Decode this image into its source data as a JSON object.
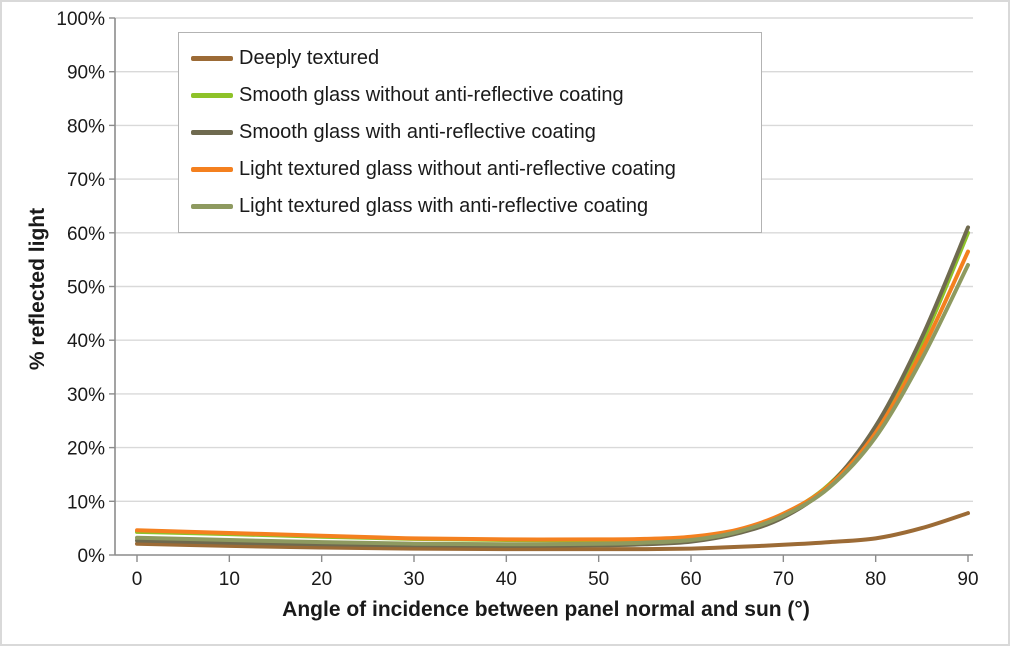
{
  "chart_data": {
    "type": "line",
    "title": "",
    "xlabel": "Angle of incidence between panel normal and sun (°)",
    "ylabel": "% reflected light",
    "xlim": [
      0,
      90
    ],
    "ylim": [
      0,
      100
    ],
    "x_ticks": [
      0,
      10,
      20,
      30,
      40,
      50,
      60,
      70,
      80,
      90
    ],
    "y_ticks": [
      "0%",
      "10%",
      "20%",
      "30%",
      "40%",
      "50%",
      "60%",
      "70%",
      "80%",
      "90%",
      "100%"
    ],
    "grid": "horizontal",
    "legend_position": "top-left",
    "x": [
      0,
      10,
      20,
      30,
      40,
      50,
      55,
      60,
      65,
      70,
      75,
      80,
      85,
      90
    ],
    "series": [
      {
        "id": "deeply-textured",
        "name": "Deeply textured",
        "color": "#9c6b36",
        "values": [
          2.1,
          1.7,
          1.4,
          1.2,
          1.1,
          1.1,
          1.1,
          1.2,
          1.5,
          1.9,
          2.4,
          3.1,
          5.0,
          7.8
        ]
      },
      {
        "id": "smooth-glass-without-ar",
        "name": "Smooth glass without anti-reflective coating",
        "color": "#8ec229",
        "values": [
          4.3,
          3.9,
          3.4,
          3.0,
          2.8,
          2.7,
          2.8,
          3.2,
          4.6,
          7.6,
          13.2,
          23.5,
          39.5,
          60.0
        ]
      },
      {
        "id": "smooth-glass-with-ar",
        "name": "Smooth glass with anti-reflective coating",
        "color": "#6f6a4f",
        "values": [
          2.7,
          2.3,
          2.0,
          1.8,
          1.7,
          1.8,
          2.0,
          2.5,
          4.0,
          7.0,
          13.0,
          24.0,
          40.5,
          61.0
        ]
      },
      {
        "id": "light-textured-without-ar",
        "name": "Light textured glass without anti-reflective coating",
        "color": "#f4801f",
        "values": [
          4.6,
          4.1,
          3.6,
          3.1,
          2.9,
          2.9,
          3.0,
          3.4,
          4.7,
          7.7,
          13.0,
          22.8,
          38.0,
          56.5
        ]
      },
      {
        "id": "light-textured-with-ar",
        "name": "Light textured glass with anti-reflective coating",
        "color": "#8e9a60",
        "values": [
          3.2,
          2.8,
          2.4,
          2.1,
          2.0,
          2.1,
          2.3,
          2.8,
          4.3,
          7.3,
          12.6,
          22.0,
          36.5,
          54.0
        ]
      }
    ]
  }
}
